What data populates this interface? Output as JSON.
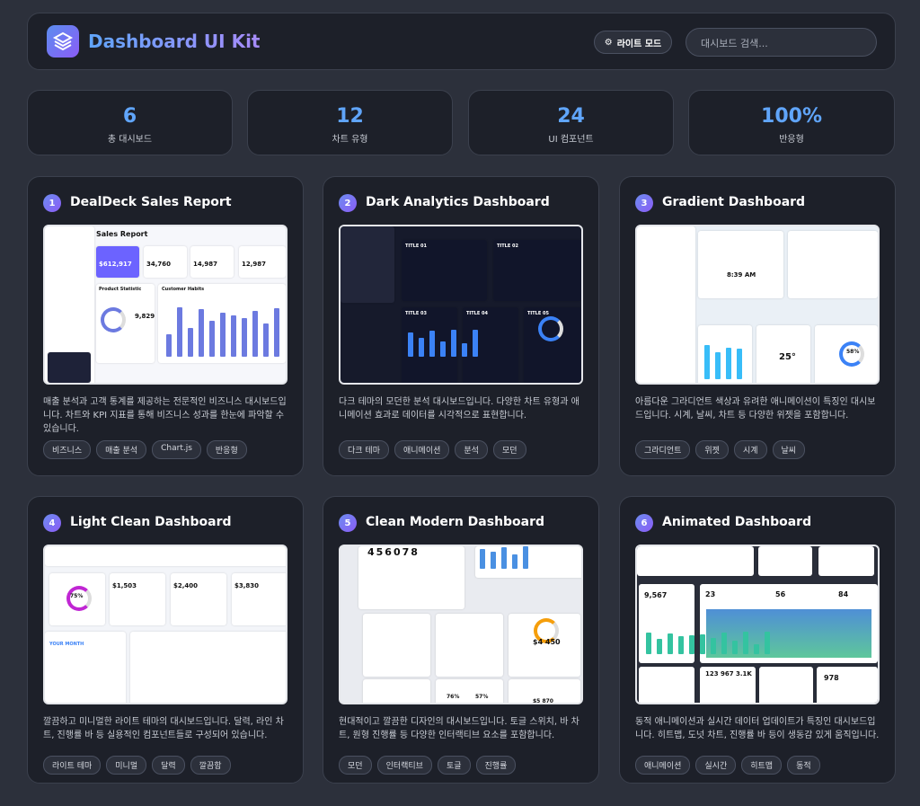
{
  "header": {
    "title": "Dashboard UI Kit",
    "mode_button": "라이트 모드",
    "search_placeholder": "대시보드 검색..."
  },
  "stats": [
    {
      "value": "6",
      "label": "총 대시보드"
    },
    {
      "value": "12",
      "label": "차트 유형"
    },
    {
      "value": "24",
      "label": "UI 컴포넌트"
    },
    {
      "value": "100%",
      "label": "반응형"
    }
  ],
  "cards": [
    {
      "number": 1,
      "title": "DealDeck Sales Report",
      "preview_texts": [
        "Sales Report",
        "$612,917",
        "34,760",
        "14,987",
        "12,987",
        "Product Statistic",
        "Customer Habits",
        "9,829"
      ],
      "description": "매출 분석과 고객 통계를 제공하는 전문적인 비즈니스 대시보드입니다. 차트와 KPI 지표를 통해 비즈니스 성과를 한눈에 파악할 수 있습니다.",
      "tags": [
        "비즈니스",
        "매출 분석",
        "Chart.js",
        "반응형"
      ]
    },
    {
      "number": 2,
      "title": "Dark Analytics Dashboard",
      "preview_texts": [
        "TITLE 01",
        "TITLE 02",
        "TITLE 03",
        "TITLE 04",
        "TITLE 05"
      ],
      "description": "다크 테마의 모던한 분석 대시보드입니다. 다양한 차트 유형과 애니메이션 효과로 데이터를 시각적으로 표현합니다.",
      "tags": [
        "다크 테마",
        "애니메이션",
        "분석",
        "모던"
      ]
    },
    {
      "number": 3,
      "title": "Gradient Dashboard",
      "preview_texts": [
        "8:39 AM",
        "25°",
        "58%"
      ],
      "description": "아름다운 그라디언트 색상과 유려한 애니메이션이 특징인 대시보드입니다. 시계, 날씨, 차트 등 다양한 위젯을 포함합니다.",
      "tags": [
        "그라디언트",
        "위젯",
        "시계",
        "날씨"
      ]
    },
    {
      "number": 4,
      "title": "Light Clean Dashboard",
      "preview_texts": [
        "75%",
        "$1,503",
        "$2,400",
        "$3,830",
        "YOUR MONTH"
      ],
      "description": "깔끔하고 미니멀한 라이트 테마의 대시보드입니다. 달력, 라인 차트, 진행률 바 등 실용적인 컴포넌트들로 구성되어 있습니다.",
      "tags": [
        "라이트 테마",
        "미니멀",
        "달력",
        "깔끔함"
      ]
    },
    {
      "number": 5,
      "title": "Clean Modern Dashboard",
      "preview_texts": [
        "456078",
        "$4 450",
        "$5 870",
        "76%",
        "57%"
      ],
      "description": "현대적이고 깔끔한 디자인의 대시보드입니다. 토글 스위치, 바 차트, 원형 진행률 등 다양한 인터랙티브 요소를 포함합니다.",
      "tags": [
        "모던",
        "인터랙티브",
        "토글",
        "진행률"
      ]
    },
    {
      "number": 6,
      "title": "Animated Dashboard",
      "preview_texts": [
        "9,567",
        "23",
        "56",
        "84",
        "123",
        "967",
        "3.1K",
        "978"
      ],
      "description": "동적 애니메이션과 실시간 데이터 업데이트가 특징인 대시보드입니다. 히트맵, 도넛 차트, 진행률 바 등이 생동감 있게 움직입니다.",
      "tags": [
        "애니메이션",
        "실시간",
        "히트맵",
        "동적"
      ]
    }
  ]
}
